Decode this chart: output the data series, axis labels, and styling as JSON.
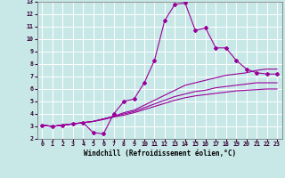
{
  "background_color": "#c8e8e8",
  "grid_color": "#ffffff",
  "line_color": "#990099",
  "xlim": [
    -0.5,
    23.5
  ],
  "ylim": [
    2,
    13
  ],
  "xticks": [
    0,
    1,
    2,
    3,
    4,
    5,
    6,
    7,
    8,
    9,
    10,
    11,
    12,
    13,
    14,
    15,
    16,
    17,
    18,
    19,
    20,
    21,
    22,
    23
  ],
  "yticks": [
    2,
    3,
    4,
    5,
    6,
    7,
    8,
    9,
    10,
    11,
    12,
    13
  ],
  "xlabel": "Windchill (Refroidissement éolien,°C)",
  "series": [
    {
      "x": [
        0,
        1,
        2,
        3,
        4,
        5,
        6,
        7,
        8,
        9,
        10,
        11,
        12,
        13,
        14,
        15,
        16,
        17,
        18,
        19,
        20,
        21,
        22,
        23
      ],
      "y": [
        3.1,
        3.0,
        3.1,
        3.2,
        3.3,
        2.5,
        2.4,
        4.0,
        5.0,
        5.2,
        6.5,
        8.3,
        11.5,
        12.8,
        12.9,
        10.7,
        10.9,
        9.3,
        9.3,
        8.3,
        7.6,
        7.3,
        7.2,
        7.2
      ],
      "marker": true
    },
    {
      "x": [
        0,
        1,
        2,
        3,
        4,
        5,
        6,
        7,
        8,
        9,
        10,
        11,
        12,
        13,
        14,
        15,
        16,
        17,
        18,
        19,
        20,
        21,
        22,
        23
      ],
      "y": [
        3.1,
        3.0,
        3.1,
        3.2,
        3.3,
        3.4,
        3.6,
        3.8,
        4.1,
        4.3,
        4.7,
        5.1,
        5.5,
        5.9,
        6.3,
        6.5,
        6.7,
        6.9,
        7.1,
        7.2,
        7.3,
        7.5,
        7.6,
        7.6
      ],
      "marker": false
    },
    {
      "x": [
        0,
        1,
        2,
        3,
        4,
        5,
        6,
        7,
        8,
        9,
        10,
        11,
        12,
        13,
        14,
        15,
        16,
        17,
        18,
        19,
        20,
        21,
        22,
        23
      ],
      "y": [
        3.1,
        3.0,
        3.1,
        3.2,
        3.3,
        3.4,
        3.6,
        3.8,
        4.0,
        4.2,
        4.5,
        4.8,
        5.1,
        5.4,
        5.6,
        5.8,
        5.9,
        6.1,
        6.2,
        6.3,
        6.4,
        6.5,
        6.5,
        6.5
      ],
      "marker": false
    },
    {
      "x": [
        0,
        1,
        2,
        3,
        4,
        5,
        6,
        7,
        8,
        9,
        10,
        11,
        12,
        13,
        14,
        15,
        16,
        17,
        18,
        19,
        20,
        21,
        22,
        23
      ],
      "y": [
        3.1,
        3.0,
        3.1,
        3.2,
        3.3,
        3.4,
        3.55,
        3.75,
        3.9,
        4.1,
        4.35,
        4.6,
        4.85,
        5.1,
        5.3,
        5.45,
        5.55,
        5.65,
        5.75,
        5.85,
        5.9,
        5.95,
        6.0,
        6.0
      ],
      "marker": false
    }
  ]
}
